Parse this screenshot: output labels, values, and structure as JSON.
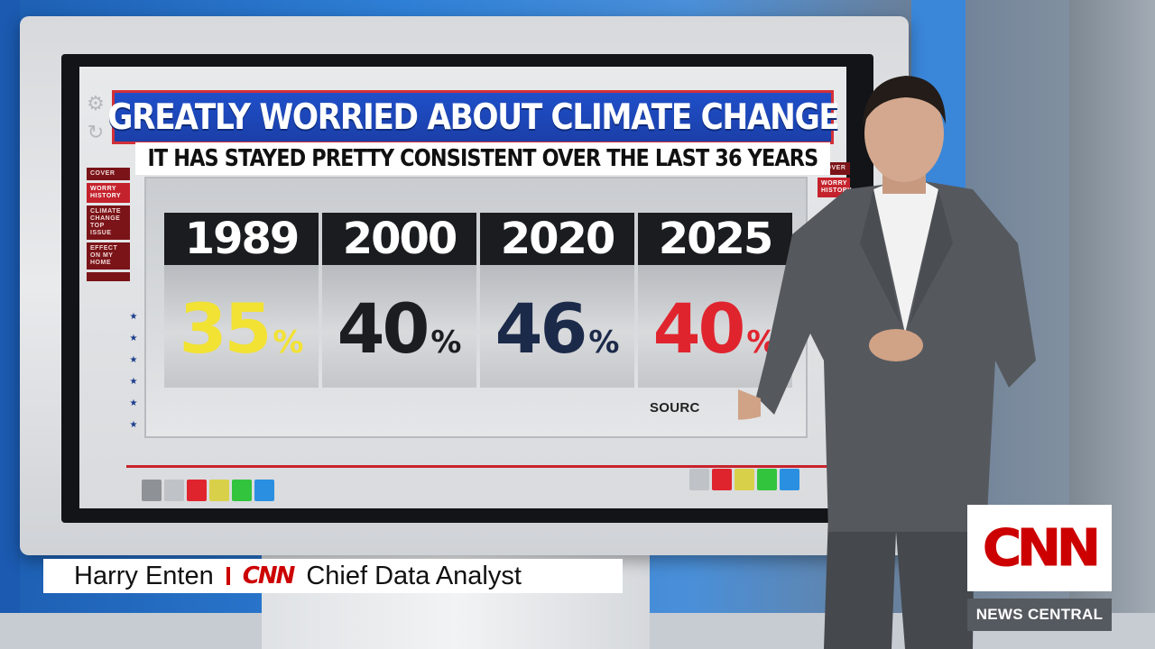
{
  "graphic": {
    "title": "GREATLY WORRIED ABOUT CLIMATE CHANGE",
    "subtitle": "IT HAS STAYED PRETTY CONSISTENT OVER THE LAST 36 YEARS",
    "source_label": "SOURC",
    "left_nav": [
      "COVER",
      "WORRY HISTORY",
      "CLIMATE CHANGE TOP ISSUE",
      "EFFECT ON MY HOME",
      ""
    ],
    "right_nav": [
      "COVER",
      "WORRY HISTORY"
    ],
    "cards": [
      {
        "year": "1989",
        "value": "35",
        "unit": "%",
        "color": "#f2e233"
      },
      {
        "year": "2000",
        "value": "40",
        "unit": "%",
        "color": "#1c1d21"
      },
      {
        "year": "2020",
        "value": "46",
        "unit": "%",
        "color": "#1c2a4a"
      },
      {
        "year": "2025",
        "value": "40",
        "unit": "%",
        "color": "#e0242e"
      }
    ],
    "swatch_colors": [
      "#bfc2c6",
      "#e0242e",
      "#d9d04a",
      "#33c43e",
      "#2a8fe0"
    ]
  },
  "lower_third": {
    "name": "Harry Enten",
    "network": "CNN",
    "role": "Chief Data Analyst"
  },
  "bug": {
    "logo": "CNN",
    "program": "NEWS CENTRAL"
  },
  "icons": [
    "gear-icon",
    "refresh-icon",
    "star-icon"
  ]
}
